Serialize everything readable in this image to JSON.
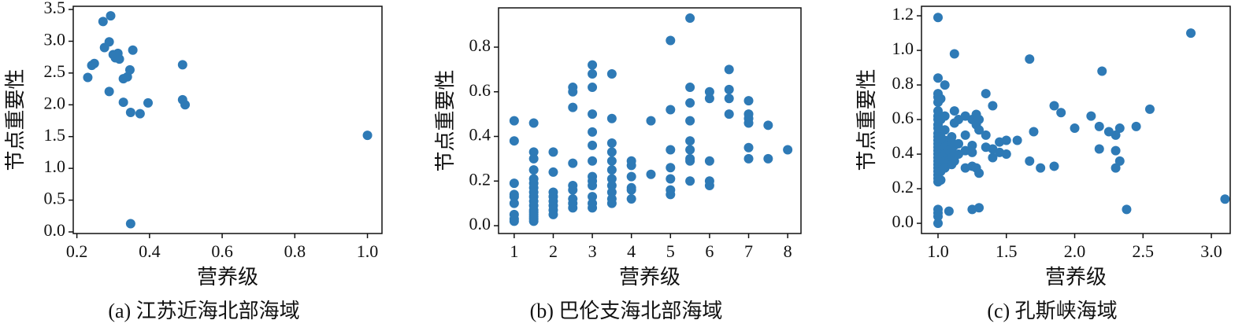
{
  "chart_data": [
    {
      "type": "scatter",
      "caption": "(a) 江苏近海北部海域",
      "xlabel": "营养级",
      "ylabel": "节点重要性",
      "color": "#2e7ab6",
      "x": [
        0.23,
        0.241,
        0.248,
        0.272,
        0.276,
        0.289,
        0.293,
        0.289,
        0.3,
        0.306,
        0.313,
        0.317,
        0.328,
        0.328,
        0.339,
        0.346,
        0.348,
        0.348,
        0.354,
        0.374,
        0.396,
        0.491,
        0.491,
        0.498,
        1.0
      ],
      "values": [
        2.43,
        2.62,
        2.65,
        3.31,
        2.9,
        2.99,
        3.4,
        2.21,
        2.79,
        2.74,
        2.81,
        2.72,
        2.41,
        2.04,
        2.44,
        2.55,
        0.13,
        1.88,
        2.86,
        1.86,
        2.03,
        2.63,
        2.08,
        2.0,
        1.52
      ],
      "xlim": [
        0.19,
        1.04
      ],
      "ylim": [
        -0.025,
        3.55
      ],
      "xticks": [
        0.2,
        0.4,
        0.6,
        0.8,
        {
          "value": 1.0,
          "label": "1.0"
        }
      ],
      "yticks": [
        {
          "value": 0,
          "label": "0.0"
        },
        0.5,
        {
          "value": 1,
          "label": "1.0"
        },
        1.5,
        {
          "value": 2,
          "label": "2.0"
        },
        2.5,
        {
          "value": 3,
          "label": "3.0"
        },
        3.5
      ]
    },
    {
      "type": "scatter",
      "caption": "(b) 巴伦支海北部海域",
      "xlabel": "营养级",
      "ylabel": "节点重要性",
      "color": "#2e7ab6",
      "x": [
        1,
        1,
        1,
        1,
        1,
        1,
        1,
        1,
        1,
        1.5,
        1.5,
        1.5,
        1.5,
        1.5,
        1.5,
        1.5,
        1.5,
        1.5,
        1.5,
        1.5,
        1.5,
        1.5,
        1.5,
        1.5,
        1.5,
        1.5,
        2,
        2,
        2,
        2,
        2,
        2,
        2,
        2,
        2.5,
        2.5,
        2.5,
        2.5,
        2.5,
        2.5,
        2.5,
        2.5,
        2.5,
        3,
        3,
        3,
        3,
        3,
        3,
        3,
        3,
        3,
        3,
        3,
        3,
        3,
        3.5,
        3.5,
        3.5,
        3.5,
        3.5,
        3.5,
        3.5,
        3.5,
        3.5,
        3.5,
        3.5,
        4,
        4,
        4,
        4,
        4,
        4,
        4.5,
        4.5,
        5,
        5,
        5,
        5,
        5,
        5,
        5,
        5.5,
        5.5,
        5.5,
        5.5,
        5.5,
        5.5,
        5.5,
        5.5,
        5.5,
        6,
        6,
        6,
        6,
        6,
        6.5,
        6.5,
        6.5,
        6.5,
        7,
        7,
        7,
        7,
        7,
        7,
        7.5,
        7.5,
        8
      ],
      "values": [
        0.47,
        0.38,
        0.19,
        0.14,
        0.13,
        0.1,
        0.05,
        0.03,
        0.02,
        0.46,
        0.33,
        0.3,
        0.25,
        0.21,
        0.19,
        0.17,
        0.15,
        0.13,
        0.11,
        0.09,
        0.07,
        0.06,
        0.05,
        0.04,
        0.03,
        0.02,
        0.33,
        0.24,
        0.15,
        0.13,
        0.11,
        0.09,
        0.07,
        0.05,
        0.62,
        0.6,
        0.53,
        0.28,
        0.18,
        0.16,
        0.12,
        0.1,
        0.08,
        0.72,
        0.68,
        0.62,
        0.5,
        0.42,
        0.36,
        0.29,
        0.22,
        0.2,
        0.18,
        0.13,
        0.1,
        0.08,
        0.68,
        0.48,
        0.37,
        0.33,
        0.29,
        0.25,
        0.21,
        0.18,
        0.15,
        0.12,
        0.1,
        0.29,
        0.27,
        0.22,
        0.17,
        0.16,
        0.12,
        0.47,
        0.23,
        0.83,
        0.52,
        0.34,
        0.26,
        0.21,
        0.16,
        0.14,
        0.93,
        0.62,
        0.55,
        0.47,
        0.38,
        0.34,
        0.3,
        0.29,
        0.2,
        0.6,
        0.57,
        0.29,
        0.2,
        0.18,
        0.7,
        0.61,
        0.57,
        0.5,
        0.56,
        0.5,
        0.48,
        0.46,
        0.35,
        0.3,
        0.45,
        0.3,
        0.34
      ],
      "xlim": [
        0.6,
        8.34
      ],
      "ylim": [
        -0.035,
        0.976
      ],
      "xticks": [
        1,
        2,
        3,
        4,
        5,
        6,
        7,
        8
      ],
      "yticks": [
        {
          "value": 0,
          "label": "0.0"
        },
        0.2,
        0.4,
        0.6,
        0.8
      ]
    },
    {
      "type": "scatter",
      "caption": "(c) 孔斯峡海域",
      "xlabel": "营养级",
      "ylabel": "节点重要性",
      "color": "#2e7ab6",
      "x": [
        1,
        1,
        1,
        1,
        1,
        1,
        1,
        1,
        1,
        1,
        1,
        1,
        1,
        1,
        1,
        1,
        1,
        1,
        1,
        1,
        1,
        1,
        1,
        1,
        1,
        1,
        1,
        1,
        1,
        1.02,
        1.02,
        1.02,
        1.02,
        1.02,
        1.02,
        1.02,
        1.05,
        1.05,
        1.05,
        1.05,
        1.05,
        1.05,
        1.05,
        1.05,
        1.08,
        1.08,
        1.08,
        1.08,
        1.1,
        1.1,
        1.1,
        1.1,
        1.1,
        1.12,
        1.12,
        1.12,
        1.12,
        1.12,
        1.12,
        1.15,
        1.15,
        1.15,
        1.2,
        1.2,
        1.2,
        1.2,
        1.25,
        1.25,
        1.25,
        1.25,
        1.25,
        1.28,
        1.28,
        1.28,
        1.3,
        1.3,
        1.3,
        1.3,
        1.35,
        1.35,
        1.35,
        1.4,
        1.4,
        1.4,
        1.45,
        1.45,
        1.5,
        1.5,
        1.58,
        1.67,
        1.67,
        1.7,
        1.75,
        1.85,
        1.85,
        1.9,
        2.0,
        2.12,
        2.18,
        2.18,
        2.2,
        2.25,
        2.3,
        2.3,
        2.3,
        2.33,
        2.33,
        2.38,
        2.45,
        2.55,
        2.85,
        3.1
      ],
      "values": [
        1.19,
        0.84,
        0.75,
        0.73,
        0.7,
        0.65,
        0.62,
        0.6,
        0.57,
        0.55,
        0.52,
        0.5,
        0.48,
        0.46,
        0.44,
        0.42,
        0.4,
        0.38,
        0.36,
        0.34,
        0.32,
        0.3,
        0.28,
        0.26,
        0.24,
        0.08,
        0.06,
        0.04,
        0.0,
        0.72,
        0.6,
        0.5,
        0.44,
        0.38,
        0.3,
        0.25,
        0.8,
        0.62,
        0.54,
        0.48,
        0.44,
        0.4,
        0.36,
        0.32,
        0.46,
        0.42,
        0.36,
        0.07,
        0.5,
        0.47,
        0.43,
        0.38,
        0.34,
        0.98,
        0.65,
        0.58,
        0.45,
        0.4,
        0.36,
        0.6,
        0.46,
        0.4,
        0.62,
        0.51,
        0.42,
        0.32,
        0.6,
        0.45,
        0.41,
        0.33,
        0.08,
        0.63,
        0.57,
        0.32,
        0.6,
        0.54,
        0.09,
        0.29,
        0.75,
        0.51,
        0.44,
        0.68,
        0.43,
        0.38,
        0.47,
        0.41,
        0.48,
        0.4,
        0.48,
        0.95,
        0.36,
        0.53,
        0.32,
        0.68,
        0.33,
        0.64,
        0.55,
        0.62,
        0.56,
        0.43,
        0.88,
        0.53,
        0.51,
        0.42,
        0.32,
        0.36,
        0.55,
        0.08,
        0.56,
        0.66,
        1.1,
        0.14
      ],
      "xlim": [
        0.879,
        3.138
      ],
      "ylim": [
        -0.059,
        1.255
      ],
      "xticks": [
        {
          "value": 1,
          "label": "1.0"
        },
        1.5,
        {
          "value": 2,
          "label": "2.0"
        },
        2.5,
        {
          "value": 3,
          "label": "3.0"
        }
      ],
      "yticks": [
        {
          "value": 0,
          "label": "0.0"
        },
        0.2,
        0.4,
        0.6,
        0.8,
        {
          "value": 1,
          "label": "1.0"
        },
        1.2
      ]
    }
  ]
}
